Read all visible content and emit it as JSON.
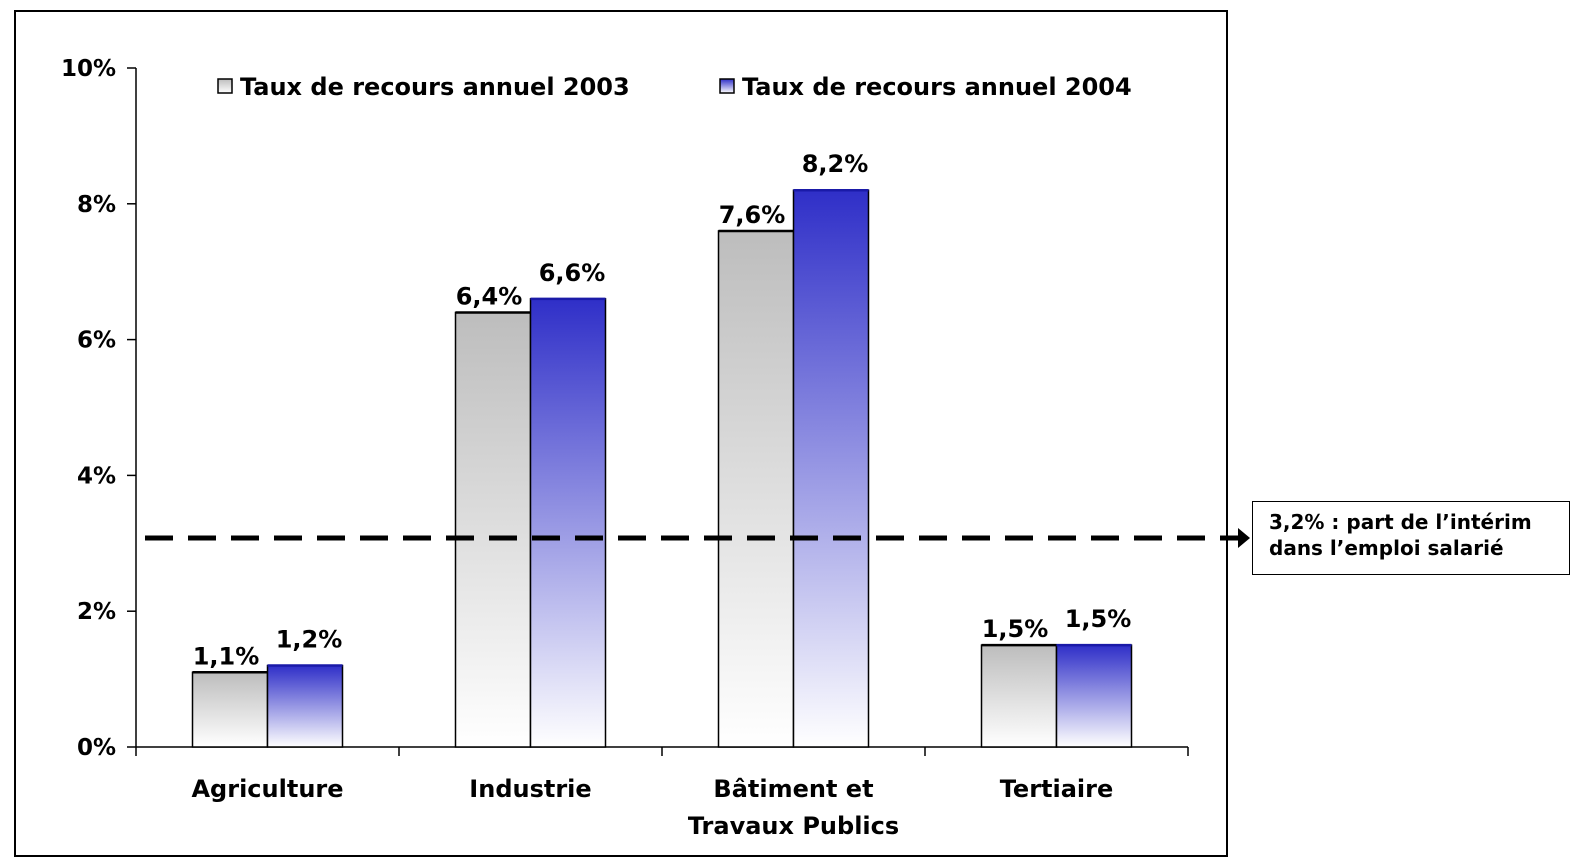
{
  "chart_data": {
    "type": "bar",
    "categories": [
      [
        "Agriculture"
      ],
      [
        "Industrie"
      ],
      [
        "Bâtiment et",
        "Travaux Publics"
      ],
      [
        "Tertiaire"
      ]
    ],
    "series": [
      {
        "name": "Taux de recours annuel 2003",
        "values": [
          1.1,
          6.4,
          7.6,
          1.5
        ],
        "labels": [
          "1,1%",
          "6,4%",
          "7,6%",
          "1,5%"
        ],
        "color": "#c0c0c0"
      },
      {
        "name": "Taux de recours annuel 2004",
        "values": [
          1.2,
          6.6,
          8.2,
          1.5
        ],
        "labels": [
          "1,2%",
          "6,6%",
          "8,2%",
          "1,5%"
        ],
        "color": "#3333cc"
      }
    ],
    "yticks": [
      0,
      2,
      4,
      6,
      8,
      10
    ],
    "ytick_labels": [
      "0%",
      "2%",
      "4%",
      "6%",
      "8%",
      "10%"
    ],
    "ylim": [
      0,
      10
    ],
    "legend_position": "top",
    "reference_line": {
      "value": 3.2,
      "label_lines": [
        "3,2% : part de l’intérim",
        "dans l’emploi salarié"
      ]
    }
  }
}
